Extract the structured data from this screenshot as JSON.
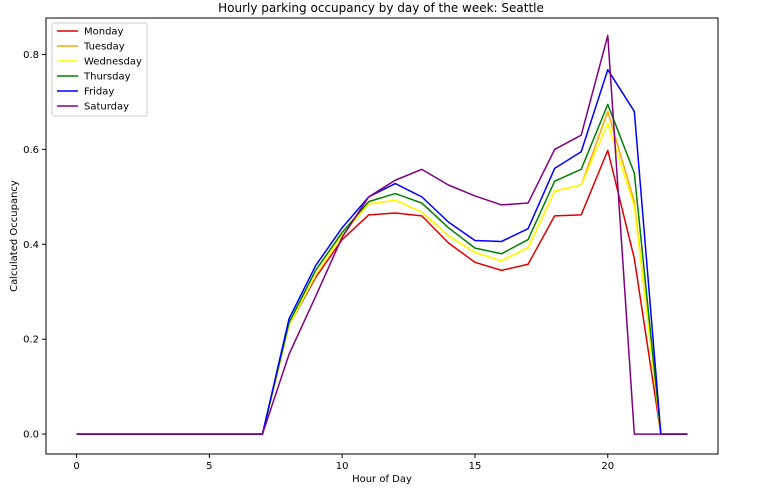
{
  "chart_data": {
    "type": "line",
    "title": "Hourly parking occupancy by day of the week: Seattle",
    "xlabel": "Hour of Day",
    "ylabel": "Calculated Occupancy",
    "xlim": [
      -1.15,
      24.15
    ],
    "ylim": [
      -0.042,
      0.877
    ],
    "xticks": [
      0,
      5,
      10,
      15,
      20
    ],
    "yticks": [
      0.0,
      0.2,
      0.4,
      0.6,
      0.8
    ],
    "xtick_labels": [
      "0",
      "5",
      "10",
      "15",
      "20"
    ],
    "ytick_labels": [
      "0.0",
      "0.2",
      "0.4",
      "0.6",
      "0.8"
    ],
    "grid": false,
    "legend_position": "top-left",
    "x": [
      0,
      1,
      2,
      3,
      4,
      5,
      6,
      7,
      8,
      9,
      10,
      11,
      12,
      13,
      14,
      15,
      16,
      17,
      18,
      19,
      20,
      21,
      22,
      23
    ],
    "series": [
      {
        "name": "Monday",
        "color": "#e00000",
        "values": [
          0,
          0,
          0,
          0,
          0,
          0,
          0,
          0,
          0.23,
          0.33,
          0.41,
          0.462,
          0.466,
          0.46,
          0.403,
          0.362,
          0.345,
          0.358,
          0.46,
          0.462,
          0.598,
          0.37,
          0,
          0
        ]
      },
      {
        "name": "Tuesday",
        "color": "#ffa500",
        "values": [
          0,
          0,
          0,
          0,
          0,
          0,
          0,
          0,
          0.23,
          0.335,
          0.42,
          0.485,
          0.493,
          0.468,
          0.418,
          0.383,
          0.365,
          0.393,
          0.512,
          0.525,
          0.68,
          0.49,
          0,
          0
        ]
      },
      {
        "name": "Wednesday",
        "color": "#ffff00",
        "values": [
          0,
          0,
          0,
          0,
          0,
          0,
          0,
          0,
          0.23,
          0.335,
          0.42,
          0.485,
          0.493,
          0.468,
          0.418,
          0.383,
          0.365,
          0.393,
          0.512,
          0.525,
          0.655,
          0.48,
          0,
          0
        ]
      },
      {
        "name": "Thursday",
        "color": "#008000",
        "values": [
          0,
          0,
          0,
          0,
          0,
          0,
          0,
          0,
          0.235,
          0.345,
          0.425,
          0.49,
          0.507,
          0.487,
          0.435,
          0.392,
          0.38,
          0.41,
          0.533,
          0.558,
          0.695,
          0.55,
          0,
          0
        ]
      },
      {
        "name": "Friday",
        "color": "#0000ff",
        "values": [
          0,
          0,
          0,
          0,
          0,
          0,
          0,
          0,
          0.243,
          0.355,
          0.435,
          0.5,
          0.528,
          0.5,
          0.447,
          0.408,
          0.406,
          0.433,
          0.56,
          0.595,
          0.768,
          0.68,
          0,
          0
        ]
      },
      {
        "name": "Saturday",
        "color": "#800080",
        "values": [
          0,
          0,
          0,
          0,
          0,
          0,
          0,
          0,
          0.168,
          0.29,
          0.415,
          0.5,
          0.535,
          0.558,
          0.525,
          0.502,
          0.483,
          0.487,
          0.6,
          0.63,
          0.84,
          0,
          0,
          0
        ]
      }
    ]
  }
}
